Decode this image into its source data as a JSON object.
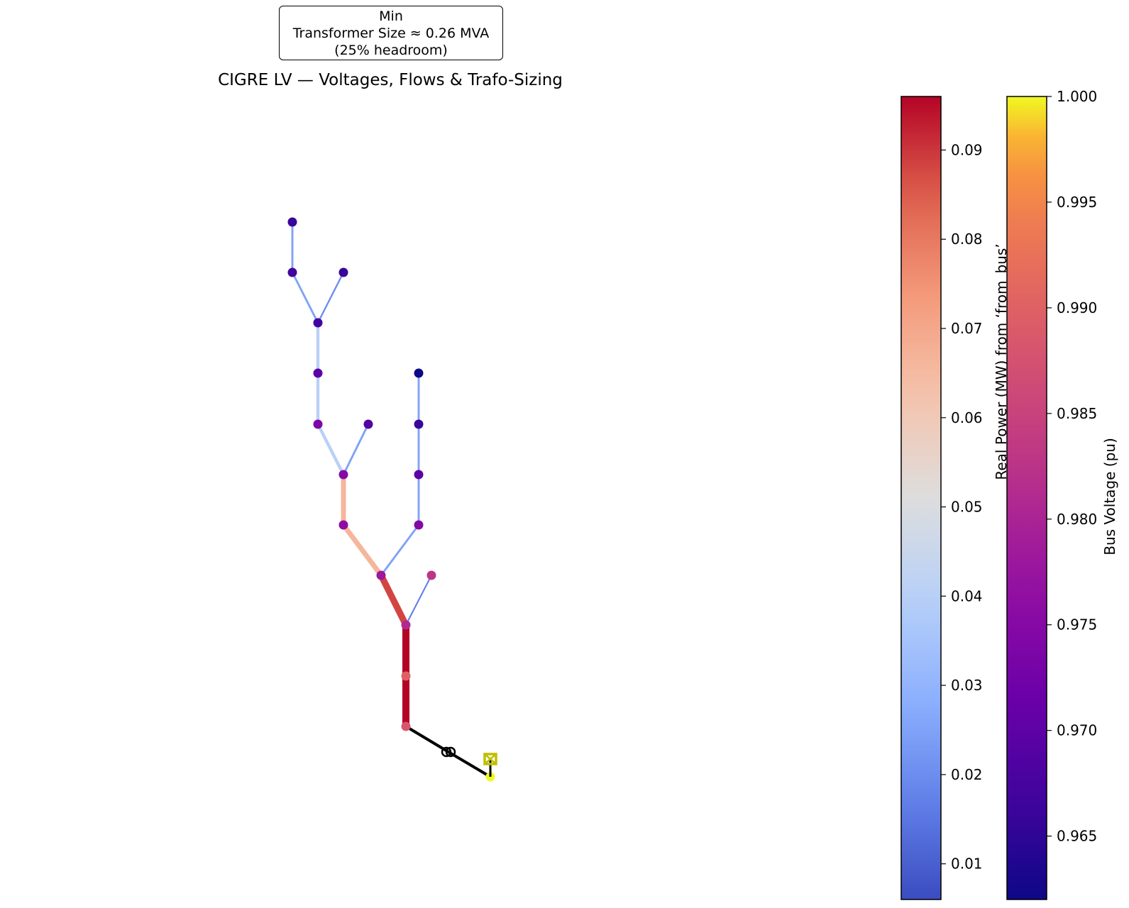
{
  "annotation": {
    "line1": "Min",
    "line2": "Transformer Size ≈ 0.26 MVA",
    "line3": "(25% headroom)"
  },
  "title": "CIGRE LV — Voltages, Flows & Trafo-Sizing",
  "colorbars": {
    "power": {
      "label": "Real Power (MW) from ‘from_bus’",
      "colormap": "coolwarm",
      "range": [
        0.006,
        0.096
      ],
      "ticks": [
        "0.01",
        "0.02",
        "0.03",
        "0.04",
        "0.05",
        "0.06",
        "0.07",
        "0.08",
        "0.09"
      ]
    },
    "voltage": {
      "label": "Bus Voltage (pu)",
      "colormap": "plasma",
      "range": [
        0.962,
        1.0
      ],
      "ticks": [
        "0.965",
        "0.970",
        "0.975",
        "0.980",
        "0.985",
        "0.990",
        "0.995",
        "1.000"
      ]
    }
  },
  "network": {
    "colors": {
      "external_line": "#000000",
      "transformer": "#000000",
      "ext_grid": "#bfbf00"
    },
    "buses": [
      {
        "id": "ext",
        "v": 1.0
      },
      {
        "id": "trafo",
        "v": null
      },
      {
        "id": "b0",
        "v": 0.99
      },
      {
        "id": "b1",
        "v": 0.988
      },
      {
        "id": "b2",
        "v": 0.981
      },
      {
        "id": "b3",
        "v": 0.983
      },
      {
        "id": "b4",
        "v": 0.978
      },
      {
        "id": "b5",
        "v": 0.976
      },
      {
        "id": "b6",
        "v": 0.975
      },
      {
        "id": "b7",
        "v": 0.969
      },
      {
        "id": "b8",
        "v": 0.974
      },
      {
        "id": "b9",
        "v": 0.97
      },
      {
        "id": "b10",
        "v": 0.967
      },
      {
        "id": "b11",
        "v": 0.966
      },
      {
        "id": "b12",
        "v": 0.967
      },
      {
        "id": "b13",
        "v": 0.966
      },
      {
        "id": "b14",
        "v": 0.975
      },
      {
        "id": "b15",
        "v": 0.97
      },
      {
        "id": "b16",
        "v": 0.966
      },
      {
        "id": "b17",
        "v": 0.962
      }
    ],
    "lines": [
      {
        "from": "b1",
        "to": "b0",
        "p": 0.096
      },
      {
        "from": "b0",
        "to": "b2",
        "p": 0.096
      },
      {
        "from": "b2",
        "to": "b4",
        "p": 0.088
      },
      {
        "from": "b2",
        "to": "b3",
        "p": 0.016
      },
      {
        "from": "b4",
        "to": "b5",
        "p": 0.066
      },
      {
        "from": "b5",
        "to": "b6",
        "p": 0.066
      },
      {
        "from": "b6",
        "to": "b7",
        "p": 0.025
      },
      {
        "from": "b6",
        "to": "b8",
        "p": 0.04
      },
      {
        "from": "b8",
        "to": "b9",
        "p": 0.04
      },
      {
        "from": "b9",
        "to": "b10",
        "p": 0.04
      },
      {
        "from": "b10",
        "to": "b11",
        "p": 0.02
      },
      {
        "from": "b10",
        "to": "b12",
        "p": 0.025
      },
      {
        "from": "b12",
        "to": "b13",
        "p": 0.025
      },
      {
        "from": "b4",
        "to": "b14",
        "p": 0.025
      },
      {
        "from": "b14",
        "to": "b15",
        "p": 0.025
      },
      {
        "from": "b15",
        "to": "b16",
        "p": 0.025
      },
      {
        "from": "b16",
        "to": "b17",
        "p": 0.025
      }
    ],
    "external_connections": [
      {
        "from": "b1",
        "to": "trafo"
      },
      {
        "from": "trafo",
        "to": "ext"
      }
    ]
  }
}
